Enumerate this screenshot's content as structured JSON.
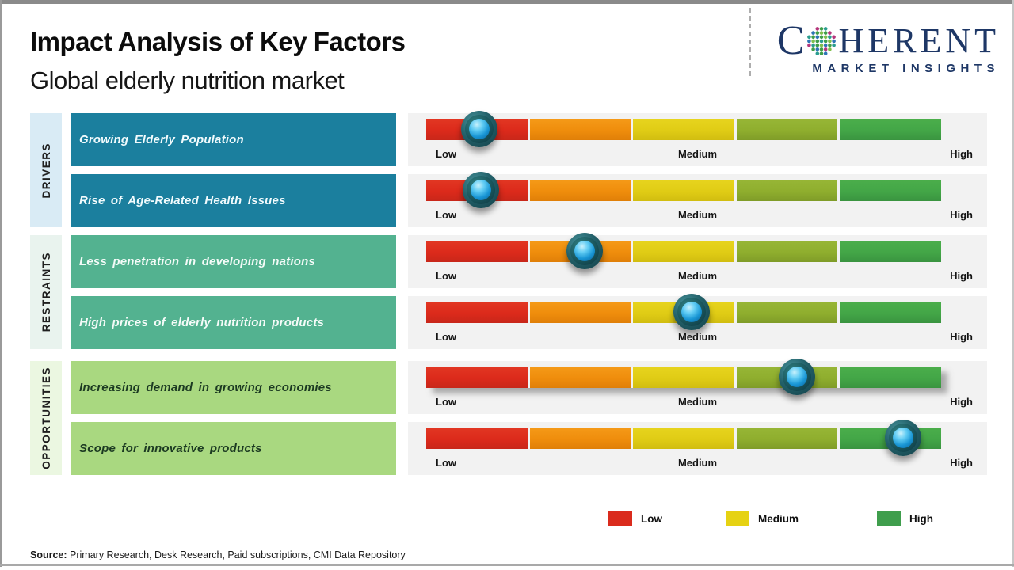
{
  "header": {
    "title": "Impact Analysis of Key Factors",
    "subtitle": "Global elderly nutrition market",
    "logo": {
      "word_start": "C",
      "word_end": "HERENT",
      "tagline": "MARKET INSIGHTS"
    }
  },
  "scale": {
    "low": "Low",
    "medium": "Medium",
    "high": "High"
  },
  "sections": [
    {
      "label": "DRIVERS",
      "rows": [
        {
          "label": "Growing Elderly Population"
        },
        {
          "label": "Rise of Age-Related Health Issues"
        }
      ]
    },
    {
      "label": "RESTRAINTS",
      "rows": [
        {
          "label": "Less penetration in developing nations"
        },
        {
          "label": "High prices of elderly nutrition products"
        }
      ]
    },
    {
      "label": "OPPORTUNITIES",
      "rows": [
        {
          "label": "Increasing demand in growing economies"
        },
        {
          "label": "Scope for innovative products"
        }
      ]
    }
  ],
  "chart_data": {
    "type": "bar",
    "title": "Impact Analysis of Key Factors",
    "subtitle": "Global elderly nutrition market",
    "scale_ticks": [
      "Low",
      "Medium",
      "High"
    ],
    "scale_range": [
      0,
      1
    ],
    "segment_colors": [
      "#dc2a1b",
      "#ef8d0c",
      "#e0cc15",
      "#8fae2e",
      "#43a647"
    ],
    "groups": [
      {
        "category": "Drivers",
        "factors": [
          {
            "name": "Growing Elderly Population",
            "position": 0.103,
            "rating": "Low"
          },
          {
            "name": "Rise of Age-Related Health Issues",
            "position": 0.106,
            "rating": "Low"
          }
        ]
      },
      {
        "category": "Restraints",
        "factors": [
          {
            "name": "Less penetration in developing nations",
            "position": 0.308,
            "rating": "Low-Medium"
          },
          {
            "name": "High prices of elderly nutrition products",
            "position": 0.515,
            "rating": "Medium"
          }
        ]
      },
      {
        "category": "Opportunities",
        "factors": [
          {
            "name": "Increasing demand in growing economies",
            "position": 0.72,
            "rating": "Medium-High"
          },
          {
            "name": "Scope for innovative products",
            "position": 0.926,
            "rating": "High"
          }
        ]
      }
    ]
  },
  "legend": [
    {
      "label": "Low",
      "color": "#da2b1d"
    },
    {
      "label": "Medium",
      "color": "#e6d213"
    },
    {
      "label": "High",
      "color": "#3f9e4d"
    }
  ],
  "source": {
    "prefix": "Source:",
    "text": " Primary Research, Desk Research, Paid subscriptions, CMI Data Repository"
  },
  "colors": {
    "driver_box": "#1b7f9e",
    "restraint_box": "#53b290",
    "opportunity_box": "#a9d880",
    "driver_sidebar": "#d9ebf5",
    "restraint_sidebar": "#e9f3ee",
    "opportunity_sidebar": "#ebf7e1",
    "row_background": "#f2f2f2",
    "logo_navy": "#1e3766"
  }
}
